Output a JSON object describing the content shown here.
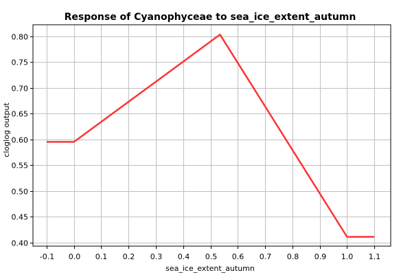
{
  "chart_data": {
    "type": "line",
    "title": "Response of Cyanophyceae to sea_ice_extent_autumn",
    "xlabel": "sea_ice_extent_autumn",
    "ylabel": "cloglog output",
    "xlim": [
      -0.15,
      1.16
    ],
    "ylim": [
      0.393,
      0.822
    ],
    "xticks": [
      -0.1,
      0.0,
      0.1,
      0.2,
      0.3,
      0.4,
      0.5,
      0.6,
      0.7,
      0.8,
      0.9,
      1.0,
      1.1
    ],
    "xtick_labels": [
      "-0.1",
      "0.0",
      "0.1",
      "0.2",
      "0.3",
      "0.4",
      "0.5",
      "0.6",
      "0.7",
      "0.8",
      "0.9",
      "1.0",
      "1.1"
    ],
    "yticks": [
      0.4,
      0.45,
      0.5,
      0.55,
      0.6,
      0.65,
      0.7,
      0.75,
      0.8
    ],
    "ytick_labels": [
      "0.40",
      "0.45",
      "0.50",
      "0.55",
      "0.60",
      "0.65",
      "0.70",
      "0.75",
      "0.80"
    ],
    "grid": true,
    "series": [
      {
        "color": "#ff3333",
        "x": [
          -0.1,
          0.0,
          0.535,
          1.0,
          1.1
        ],
        "y": [
          0.595,
          0.595,
          0.803,
          0.411,
          0.411
        ]
      }
    ]
  }
}
